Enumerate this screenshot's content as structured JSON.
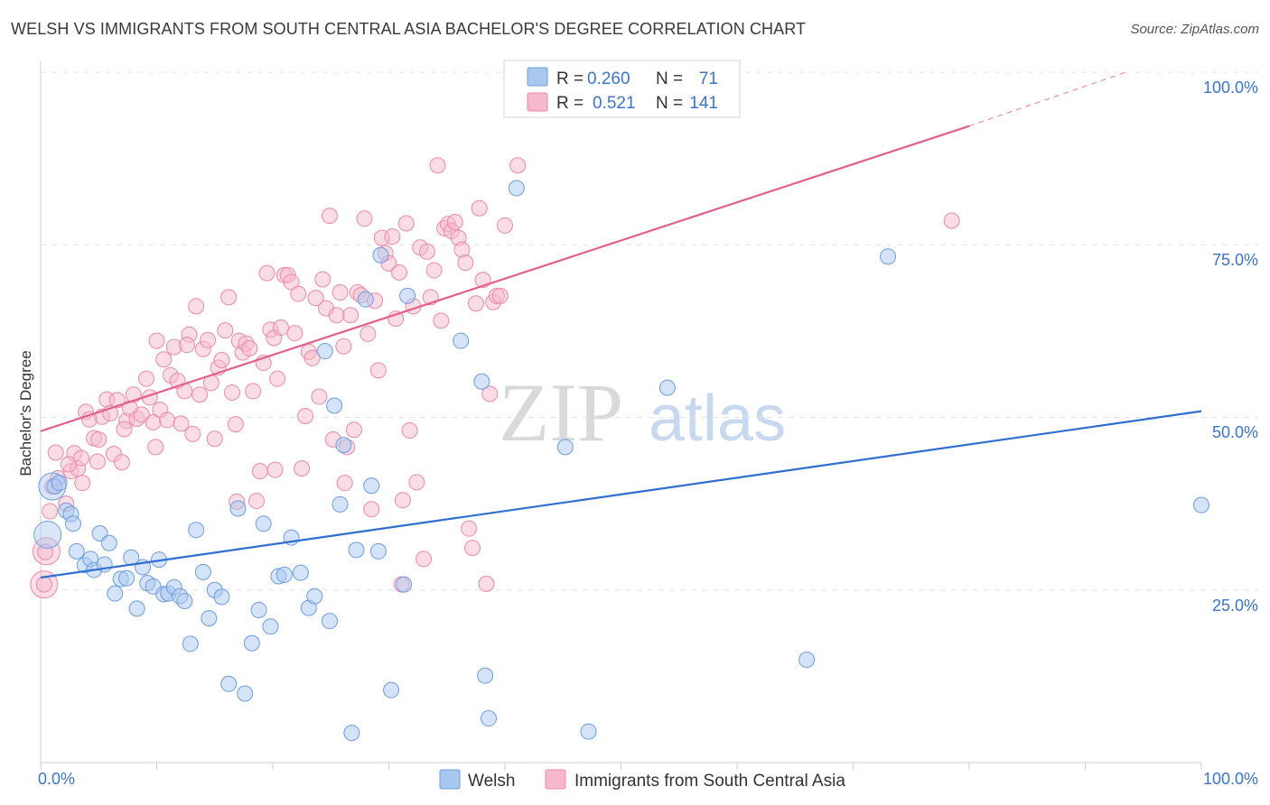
{
  "header": {
    "title": "WELSH VS IMMIGRANTS FROM SOUTH CENTRAL ASIA BACHELOR'S DEGREE CORRELATION CHART",
    "source": "Source: ZipAtlas.com"
  },
  "watermark": {
    "zip": "ZIP",
    "atlas": "atlas"
  },
  "legend": {
    "welsh": {
      "r_label": "R =",
      "r_value": "0.260",
      "n_label": "N =",
      "n_value": "71"
    },
    "immigrants": {
      "r_label": "R =",
      "r_value": "0.521",
      "n_label": "N =",
      "n_value": "141"
    }
  },
  "bottom_legend": {
    "welsh": "Welsh",
    "immigrants": "Immigrants from South Central Asia"
  },
  "colors": {
    "welsh_fill": "#a9c8f0",
    "welsh_stroke": "#6d9ee0",
    "welsh_line": "#2f6fd0",
    "imm_fill": "#f6b9cc",
    "imm_stroke": "#ea8aaa",
    "imm_line": "#e3608c",
    "tick_text": "#3c74c6",
    "grid": "#e3e3e3"
  },
  "chart_data": {
    "type": "scatter",
    "title": "WELSH VS IMMIGRANTS FROM SOUTH CENTRAL ASIA BACHELOR'S DEGREE CORRELATION CHART",
    "xlabel": "",
    "ylabel": "Bachelor's Degree",
    "xlim": [
      0,
      100
    ],
    "ylim": [
      0,
      100
    ],
    "x_tick_labels": [
      "0.0%",
      "100.0%"
    ],
    "y_tick_labels": [
      "25.0%",
      "50.0%",
      "75.0%",
      "100.0%"
    ],
    "y_ticks": [
      25,
      50,
      75,
      100
    ],
    "grid": true,
    "legend_position": "top-center",
    "series": [
      {
        "name": "Welsh",
        "R": 0.26,
        "N": 71,
        "trend": {
          "x": [
            0,
            100
          ],
          "y": [
            26.8,
            50.9
          ]
        },
        "points": [
          [
            1.2,
            40.0
          ],
          [
            1.6,
            40.5
          ],
          [
            2.2,
            36.5
          ],
          [
            2.6,
            36.0
          ],
          [
            2.8,
            34.6
          ],
          [
            3.1,
            30.6
          ],
          [
            3.8,
            28.6
          ],
          [
            4.3,
            29.5
          ],
          [
            4.6,
            27.9
          ],
          [
            5.1,
            33.2
          ],
          [
            5.5,
            28.7
          ],
          [
            5.9,
            31.8
          ],
          [
            6.4,
            24.5
          ],
          [
            6.9,
            26.6
          ],
          [
            7.4,
            26.7
          ],
          [
            7.8,
            29.7
          ],
          [
            8.3,
            22.3
          ],
          [
            8.8,
            28.3
          ],
          [
            9.2,
            26.0
          ],
          [
            9.7,
            25.5
          ],
          [
            10.2,
            29.4
          ],
          [
            10.6,
            24.4
          ],
          [
            11.0,
            24.5
          ],
          [
            11.5,
            25.4
          ],
          [
            12.0,
            24.1
          ],
          [
            12.4,
            23.4
          ],
          [
            12.9,
            17.2
          ],
          [
            13.4,
            33.7
          ],
          [
            14.0,
            27.6
          ],
          [
            14.5,
            20.9
          ],
          [
            15.0,
            25.0
          ],
          [
            15.6,
            24.0
          ],
          [
            16.2,
            11.4
          ],
          [
            17.0,
            36.8
          ],
          [
            17.6,
            10.0
          ],
          [
            18.2,
            17.3
          ],
          [
            18.8,
            22.1
          ],
          [
            19.2,
            34.6
          ],
          [
            19.8,
            19.7
          ],
          [
            20.5,
            27.0
          ],
          [
            21.0,
            27.2
          ],
          [
            21.6,
            32.6
          ],
          [
            22.4,
            27.5
          ],
          [
            23.1,
            22.4
          ],
          [
            23.6,
            24.1
          ],
          [
            24.5,
            59.6
          ],
          [
            24.9,
            20.5
          ],
          [
            25.3,
            51.7
          ],
          [
            25.8,
            37.4
          ],
          [
            26.1,
            46.0
          ],
          [
            26.8,
            4.3
          ],
          [
            27.2,
            30.8
          ],
          [
            28.0,
            67.1
          ],
          [
            28.5,
            40.1
          ],
          [
            29.1,
            30.6
          ],
          [
            29.3,
            73.5
          ],
          [
            30.2,
            10.5
          ],
          [
            31.3,
            25.8
          ],
          [
            31.6,
            67.6
          ],
          [
            36.2,
            61.1
          ],
          [
            38.0,
            55.2
          ],
          [
            38.3,
            12.6
          ],
          [
            38.6,
            6.4
          ],
          [
            41.0,
            83.2
          ],
          [
            45.2,
            45.7
          ],
          [
            47.2,
            4.5
          ],
          [
            54.0,
            54.3
          ],
          [
            66.0,
            14.9
          ],
          [
            73.0,
            73.3
          ],
          [
            100.0,
            37.3
          ]
        ],
        "large_points": [
          [
            1.0,
            40.0
          ],
          [
            0.6,
            33.0
          ]
        ]
      },
      {
        "name": "Immigrants from South Central Asia",
        "R": 0.521,
        "N": 141,
        "trend": {
          "x": [
            0,
            80
          ],
          "y": [
            48.0,
            92.2
          ]
        },
        "trend_dashed": {
          "x": [
            80,
            93.5
          ],
          "y": [
            92.2,
            100.0
          ]
        },
        "points": [
          [
            0.8,
            36.4
          ],
          [
            1.0,
            40.0
          ],
          [
            1.5,
            41.2
          ],
          [
            2.2,
            37.5
          ],
          [
            2.6,
            42.2
          ],
          [
            2.9,
            44.8
          ],
          [
            3.2,
            42.6
          ],
          [
            3.5,
            44.1
          ],
          [
            3.9,
            50.8
          ],
          [
            4.2,
            49.7
          ],
          [
            4.6,
            47.0
          ],
          [
            4.9,
            43.6
          ],
          [
            5.3,
            50.1
          ],
          [
            5.7,
            52.6
          ],
          [
            6.0,
            50.6
          ],
          [
            6.3,
            44.7
          ],
          [
            6.6,
            52.5
          ],
          [
            7.0,
            43.5
          ],
          [
            7.4,
            49.5
          ],
          [
            7.7,
            51.3
          ],
          [
            8.0,
            53.3
          ],
          [
            8.3,
            49.8
          ],
          [
            8.7,
            50.4
          ],
          [
            9.1,
            55.6
          ],
          [
            9.4,
            52.9
          ],
          [
            9.7,
            49.3
          ],
          [
            10.0,
            61.1
          ],
          [
            10.3,
            51.1
          ],
          [
            10.6,
            58.4
          ],
          [
            10.9,
            49.6
          ],
          [
            11.2,
            56.1
          ],
          [
            11.5,
            60.2
          ],
          [
            11.8,
            55.3
          ],
          [
            12.1,
            49.1
          ],
          [
            12.4,
            53.8
          ],
          [
            12.8,
            62.0
          ],
          [
            13.1,
            47.6
          ],
          [
            13.4,
            66.1
          ],
          [
            13.7,
            53.3
          ],
          [
            14.0,
            59.9
          ],
          [
            14.4,
            61.2
          ],
          [
            14.7,
            55.0
          ],
          [
            15.0,
            46.9
          ],
          [
            15.3,
            57.2
          ],
          [
            15.6,
            58.3
          ],
          [
            15.9,
            62.6
          ],
          [
            16.2,
            67.4
          ],
          [
            16.5,
            53.6
          ],
          [
            16.8,
            49.0
          ],
          [
            17.1,
            61.1
          ],
          [
            17.4,
            59.4
          ],
          [
            17.7,
            60.7
          ],
          [
            18.0,
            60.0
          ],
          [
            18.3,
            53.8
          ],
          [
            18.6,
            37.9
          ],
          [
            18.9,
            42.2
          ],
          [
            19.2,
            57.9
          ],
          [
            19.5,
            70.9
          ],
          [
            19.8,
            62.7
          ],
          [
            20.1,
            61.5
          ],
          [
            20.4,
            55.6
          ],
          [
            20.7,
            63.0
          ],
          [
            21.0,
            70.6
          ],
          [
            21.3,
            70.6
          ],
          [
            21.6,
            69.6
          ],
          [
            21.9,
            62.2
          ],
          [
            22.2,
            67.9
          ],
          [
            22.5,
            42.6
          ],
          [
            22.8,
            50.2
          ],
          [
            23.1,
            59.5
          ],
          [
            23.4,
            58.6
          ],
          [
            23.7,
            67.3
          ],
          [
            24.0,
            53.0
          ],
          [
            24.3,
            70.0
          ],
          [
            24.6,
            65.8
          ],
          [
            24.9,
            79.2
          ],
          [
            25.2,
            46.8
          ],
          [
            25.5,
            64.8
          ],
          [
            25.8,
            68.1
          ],
          [
            26.1,
            60.3
          ],
          [
            26.4,
            45.7
          ],
          [
            26.7,
            64.8
          ],
          [
            27.0,
            48.2
          ],
          [
            27.3,
            68.1
          ],
          [
            27.6,
            67.7
          ],
          [
            27.9,
            78.8
          ],
          [
            28.2,
            62.1
          ],
          [
            28.5,
            36.7
          ],
          [
            28.8,
            66.9
          ],
          [
            29.1,
            56.8
          ],
          [
            29.4,
            76.0
          ],
          [
            29.7,
            73.8
          ],
          [
            30.0,
            72.3
          ],
          [
            30.3,
            76.2
          ],
          [
            30.6,
            64.3
          ],
          [
            30.9,
            71.0
          ],
          [
            31.2,
            38.0
          ],
          [
            31.5,
            78.1
          ],
          [
            31.8,
            48.1
          ],
          [
            32.1,
            66.1
          ],
          [
            32.4,
            40.6
          ],
          [
            32.7,
            74.6
          ],
          [
            33.0,
            29.5
          ],
          [
            33.3,
            74.0
          ],
          [
            33.6,
            67.4
          ],
          [
            33.9,
            71.3
          ],
          [
            34.2,
            86.5
          ],
          [
            34.5,
            64.0
          ],
          [
            34.8,
            77.4
          ],
          [
            35.1,
            78.0
          ],
          [
            35.4,
            77.0
          ],
          [
            35.7,
            78.3
          ],
          [
            36.0,
            76.0
          ],
          [
            36.3,
            74.3
          ],
          [
            36.6,
            72.4
          ],
          [
            36.9,
            33.9
          ],
          [
            37.2,
            31.1
          ],
          [
            37.5,
            66.5
          ],
          [
            37.8,
            80.3
          ],
          [
            38.1,
            69.9
          ],
          [
            38.4,
            25.9
          ],
          [
            38.7,
            53.4
          ],
          [
            39.0,
            66.7
          ],
          [
            39.3,
            67.6
          ],
          [
            40.0,
            77.8
          ],
          [
            41.1,
            86.5
          ],
          [
            31.1,
            25.8
          ],
          [
            26.2,
            40.5
          ],
          [
            20.2,
            42.4
          ],
          [
            16.9,
            37.8
          ],
          [
            12.6,
            60.5
          ],
          [
            9.9,
            45.7
          ],
          [
            7.2,
            48.3
          ],
          [
            5.0,
            46.8
          ],
          [
            3.6,
            40.5
          ],
          [
            2.4,
            43.2
          ],
          [
            1.3,
            44.9
          ],
          [
            0.4,
            30.5
          ],
          [
            0.3,
            25.8
          ],
          [
            78.5,
            78.5
          ],
          [
            39.6,
            67.6
          ]
        ],
        "large_points": [
          [
            0.5,
            30.6
          ],
          [
            0.3,
            25.8
          ]
        ]
      }
    ]
  }
}
